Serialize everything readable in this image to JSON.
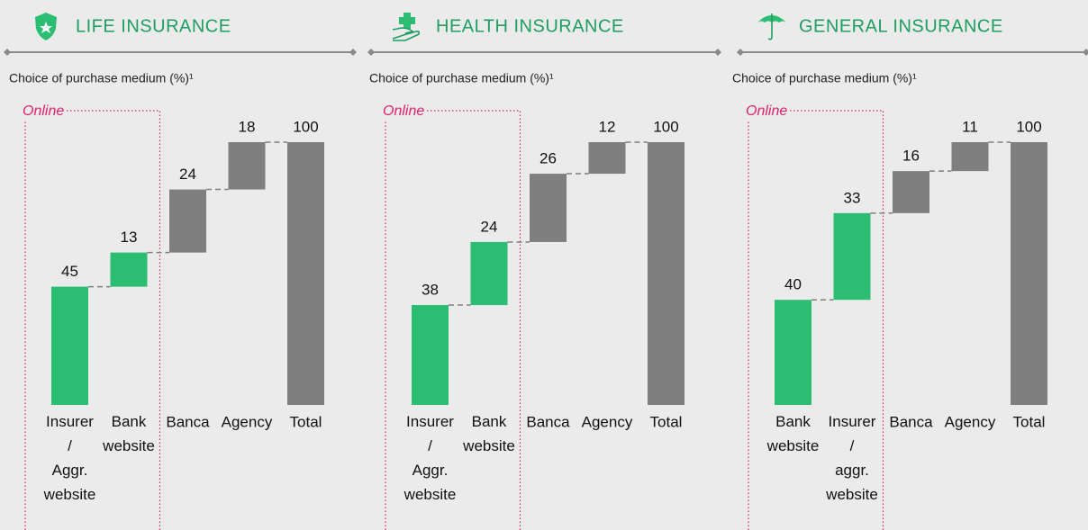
{
  "chart_data": [
    {
      "type": "waterfall",
      "title": "LIFE INSURANCE",
      "subtitle": "Choice of purchase medium (%)¹",
      "online_label": "Online",
      "categories": [
        "Insurer / Aggr. website",
        "Bank website",
        "Banca",
        "Agency",
        "Total"
      ],
      "values": [
        45,
        13,
        24,
        18,
        100
      ],
      "colors": [
        "#2bbd72",
        "#2bbd72",
        "#7f7f7f",
        "#7f7f7f",
        "#7f7f7f"
      ],
      "ylim": [
        0,
        100
      ]
    },
    {
      "type": "waterfall",
      "title": "HEALTH INSURANCE",
      "subtitle": "Choice of purchase medium (%)¹",
      "online_label": "Online",
      "categories": [
        "Insurer / Aggr. website",
        "Bank website",
        "Banca",
        "Agency",
        "Total"
      ],
      "values": [
        38,
        24,
        26,
        12,
        100
      ],
      "colors": [
        "#2bbd72",
        "#2bbd72",
        "#7f7f7f",
        "#7f7f7f",
        "#7f7f7f"
      ],
      "ylim": [
        0,
        100
      ]
    },
    {
      "type": "waterfall",
      "title": "GENERAL INSURANCE",
      "subtitle": "Choice of purchase medium (%)¹",
      "online_label": "Online",
      "categories": [
        "Bank website",
        "Insurer / aggr. website",
        "Banca",
        "Agency",
        "Total"
      ],
      "values": [
        40,
        33,
        16,
        11,
        100
      ],
      "colors": [
        "#2bbd72",
        "#2bbd72",
        "#7f7f7f",
        "#7f7f7f",
        "#7f7f7f"
      ],
      "ylim": [
        0,
        100
      ]
    }
  ]
}
